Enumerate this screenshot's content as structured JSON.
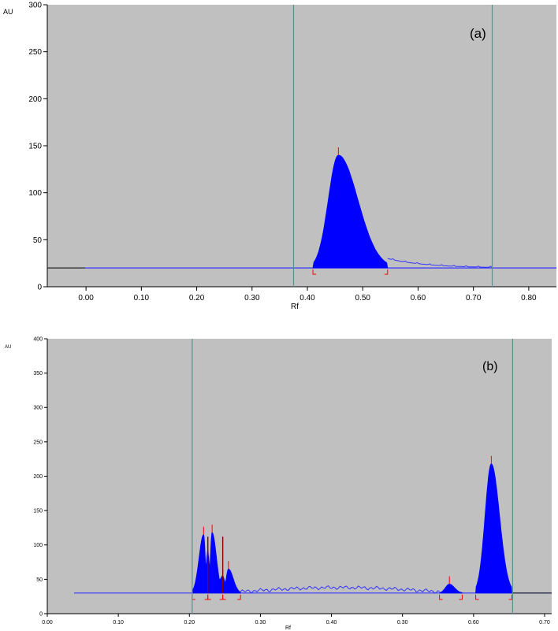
{
  "chart_data": [
    {
      "type": "area",
      "panel_label": "(a)",
      "ylabel": "AU",
      "xlabel": "Rf",
      "xlim": [
        -0.07,
        0.85
      ],
      "ylim": [
        0,
        300
      ],
      "x_tick_labels": [
        "0.00",
        "0.10",
        "0.20",
        "0.30",
        "0.40",
        "0.50",
        "0.60",
        "0.70",
        "0.80"
      ],
      "y_tick_labels": [
        "0",
        "50",
        "100",
        "150",
        "200",
        "250",
        "300"
      ],
      "baseline_au": 20,
      "vertical_markers_rf": [
        0.375,
        0.734
      ],
      "peaks": [
        {
          "start_rf": 0.41,
          "apex_rf": 0.456,
          "end_rf": 0.545,
          "height_au": 140
        }
      ],
      "colors": {
        "background": "#c0c0c0",
        "fill": "#0000ff",
        "baseline": "#3333ff",
        "marker": "#5f8f8f",
        "peak_marker": "#ff0000"
      }
    },
    {
      "type": "area",
      "panel_label": "(b)",
      "ylabel": "AU",
      "xlabel": "Rf",
      "xlim": [
        0.0,
        0.71
      ],
      "ylim": [
        0,
        400
      ],
      "x_tick_labels": [
        "0.00",
        "0.10",
        "0.20",
        "0.30",
        "0.40",
        "0.30",
        "0.60",
        "0.70"
      ],
      "y_tick_labels": [
        "0",
        "50",
        "100",
        "150",
        "200",
        "250",
        "300",
        "350",
        "400"
      ],
      "baseline_au": 30,
      "vertical_markers_rf": [
        0.204,
        0.655
      ],
      "peaks": [
        {
          "start_rf": 0.204,
          "apex_rf": 0.22,
          "end_rf": 0.226,
          "height_au": 115
        },
        {
          "start_rf": 0.226,
          "apex_rf": 0.232,
          "end_rf": 0.247,
          "height_au": 118
        },
        {
          "start_rf": 0.247,
          "apex_rf": 0.255,
          "end_rf": 0.272,
          "height_au": 65
        },
        {
          "start_rf": 0.552,
          "apex_rf": 0.566,
          "end_rf": 0.584,
          "height_au": 43
        },
        {
          "start_rf": 0.603,
          "apex_rf": 0.625,
          "end_rf": 0.654,
          "height_au": 218
        }
      ],
      "colors": {
        "background": "#c0c0c0",
        "fill": "#0000ff",
        "baseline": "#3333ff",
        "marker": "#5f8f8f",
        "peak_marker": "#ff0000"
      }
    }
  ]
}
